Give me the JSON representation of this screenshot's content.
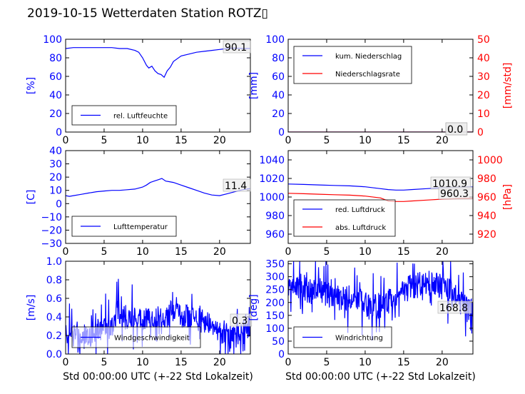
{
  "page_title": "2019-10-15 Wetterdaten Station ROTZ▯",
  "chart_data": [
    {
      "id": "humidity",
      "type": "line",
      "ylabel": "[%]",
      "ylabel_color": "#0000ff",
      "xlim": [
        0,
        24
      ],
      "ylim": [
        0,
        100
      ],
      "yticks": [
        0,
        20,
        40,
        60,
        80,
        100
      ],
      "ytick_color": "#0000ff",
      "xticks": [
        0,
        5,
        10,
        15,
        20
      ],
      "legend_placement": "lower-left",
      "series": [
        {
          "name": "rel. Luftfeuchte",
          "color": "#0000ff",
          "x": [
            0,
            1,
            2,
            4,
            6,
            7,
            8,
            9,
            9.5,
            10,
            10.5,
            10.8,
            11.2,
            11.6,
            12,
            12.4,
            12.8,
            13.2,
            13.6,
            14,
            15,
            16,
            17,
            18,
            19,
            20,
            21,
            22,
            23,
            24
          ],
          "y": [
            90,
            91,
            91,
            91,
            91,
            90,
            90,
            88,
            86,
            80,
            72,
            69,
            71,
            66,
            63,
            62,
            59,
            66,
            70,
            76,
            82,
            84,
            86,
            87,
            88,
            89,
            90,
            90.5,
            90,
            90.1
          ]
        }
      ],
      "value_label": "90.1"
    },
    {
      "id": "precip",
      "type": "line",
      "ylabel": "[mm]",
      "ylabel_color": "#0000ff",
      "ylabel_right": "[mm/std]",
      "ylabel_right_color": "#ff0000",
      "xlim": [
        0,
        24
      ],
      "ylim": [
        0,
        100
      ],
      "ylim_right": [
        0,
        50
      ],
      "yticks": [
        0,
        20,
        40,
        60,
        80,
        100
      ],
      "ytick_color": "#0000ff",
      "yticks_right": [
        0,
        10,
        20,
        30,
        40,
        50
      ],
      "ytick_right_color": "#ff0000",
      "xticks": [
        0,
        5,
        10,
        15,
        20
      ],
      "legend_placement": "upper-left",
      "series": [
        {
          "name": "kum. Niederschlag",
          "color": "#0000ff",
          "x": [
            0,
            24
          ],
          "y": [
            0,
            0
          ]
        },
        {
          "name": "Niederschlagsrate",
          "color": "#ff0000",
          "axis": "right",
          "x": [
            0,
            24
          ],
          "y": [
            0,
            0
          ]
        }
      ],
      "value_label": "0.0",
      "value_label_2": "0.0"
    },
    {
      "id": "temperature",
      "type": "line",
      "ylabel": "[C]",
      "ylabel_color": "#0000ff",
      "xlim": [
        0,
        24
      ],
      "ylim": [
        -30,
        40
      ],
      "yticks": [
        -30,
        -20,
        -10,
        0,
        10,
        20,
        30,
        40
      ],
      "ytick_color": "#0000ff",
      "xticks": [
        0,
        5,
        10,
        15,
        20
      ],
      "legend_placement": "lower-left",
      "series": [
        {
          "name": "Lufttemperatur",
          "color": "#0000ff",
          "x": [
            0,
            0.5,
            1,
            2,
            3,
            4,
            5,
            6,
            7,
            8,
            9,
            10,
            10.5,
            11,
            11.5,
            12,
            12.5,
            13,
            13.5,
            14,
            15,
            16,
            17,
            18,
            19,
            20,
            21,
            22,
            23,
            24
          ],
          "y": [
            6,
            5.5,
            6,
            7,
            8,
            9,
            9.5,
            10,
            10,
            10.5,
            11,
            12.5,
            14,
            16,
            17,
            18,
            19,
            17,
            16.5,
            16,
            14,
            12,
            10,
            8,
            6.5,
            6,
            7.5,
            9,
            10.5,
            11.4
          ]
        }
      ],
      "value_label": "11.4"
    },
    {
      "id": "pressure",
      "type": "line",
      "ylabel_right": "[hPa]",
      "ylabel_right_color": "#ff0000",
      "xlim": [
        0,
        24
      ],
      "ylim": [
        950,
        1050
      ],
      "ylim_right": [
        910,
        1010
      ],
      "yticks": [
        960,
        980,
        1000,
        1020,
        1040
      ],
      "ytick_color": "#0000ff",
      "yticks_right": [
        920,
        940,
        960,
        980,
        1000
      ],
      "ytick_right_color": "#ff0000",
      "xticks": [
        0,
        5,
        10,
        15,
        20
      ],
      "legend_placement": "lower-left",
      "series": [
        {
          "name": "red. Luftdruck",
          "color": "#0000ff",
          "x": [
            0,
            2,
            4,
            6,
            8,
            10,
            12,
            13,
            14,
            15,
            16,
            18,
            20,
            22,
            24
          ],
          "y": [
            1014,
            1013.5,
            1013,
            1012.5,
            1012,
            1011,
            1009,
            1008,
            1007.5,
            1007.5,
            1008,
            1009,
            1010,
            1010.5,
            1010.9
          ]
        }
      ],
      "value_label": "1010.9",
      "value_label_2": "960.3"
    },
    {
      "id": "wind_speed",
      "type": "line",
      "ylabel": "[m/s]",
      "ylabel_color": "#0000ff",
      "xlabel": "Std 00:00:00 UTC (+-22 Std Lokalzeit)",
      "xlim": [
        0,
        24
      ],
      "ylim": [
        0,
        1.0
      ],
      "yticks": [
        0.0,
        0.2,
        0.4,
        0.6,
        0.8,
        1.0
      ],
      "ytick_color": "#0000ff",
      "xticks": [
        0,
        5,
        10,
        15,
        20
      ],
      "legend_placement": "lower-center",
      "series": [
        {
          "name": "Windgeschwindigkeit",
          "color": "#0000ff",
          "noisy": true,
          "x": [
            0,
            1,
            2,
            3,
            4,
            5,
            6,
            6.8,
            7,
            8,
            9,
            10,
            11,
            12,
            13,
            14,
            15,
            16,
            17,
            18,
            19,
            20,
            21,
            22,
            23,
            24
          ],
          "y": [
            0.22,
            0.22,
            0.2,
            0.22,
            0.25,
            0.3,
            0.32,
            0.5,
            0.45,
            0.4,
            0.4,
            0.4,
            0.38,
            0.4,
            0.4,
            0.45,
            0.42,
            0.4,
            0.38,
            0.35,
            0.28,
            0.25,
            0.2,
            0.18,
            0.3,
            0.3
          ]
        }
      ],
      "value_label": "0.3"
    },
    {
      "id": "wind_direction",
      "type": "line",
      "ylabel": "[deg]",
      "ylabel_color": "#0000ff",
      "xlabel": "Std 00:00:00 UTC (+-22 Std Lokalzeit)",
      "xlim": [
        0,
        24
      ],
      "ylim": [
        0,
        360
      ],
      "yticks": [
        0,
        50,
        100,
        150,
        200,
        250,
        300,
        350
      ],
      "ytick_color": "#0000ff",
      "xticks": [
        0,
        5,
        10,
        15,
        20
      ],
      "legend_placement": "lower-left",
      "series": [
        {
          "name": "Windrichtung",
          "color": "#0000ff",
          "noisy": true,
          "x": [
            0,
            1,
            2,
            3,
            4,
            5,
            6,
            7,
            8,
            9,
            10,
            11,
            12,
            13,
            14,
            15,
            16,
            17,
            18,
            19,
            20,
            21,
            22,
            23,
            24
          ],
          "y": [
            260,
            270,
            260,
            240,
            250,
            230,
            220,
            210,
            220,
            215,
            200,
            180,
            190,
            200,
            230,
            240,
            260,
            270,
            280,
            270,
            260,
            240,
            220,
            180,
            170
          ]
        }
      ],
      "value_label": "168.8"
    }
  ]
}
